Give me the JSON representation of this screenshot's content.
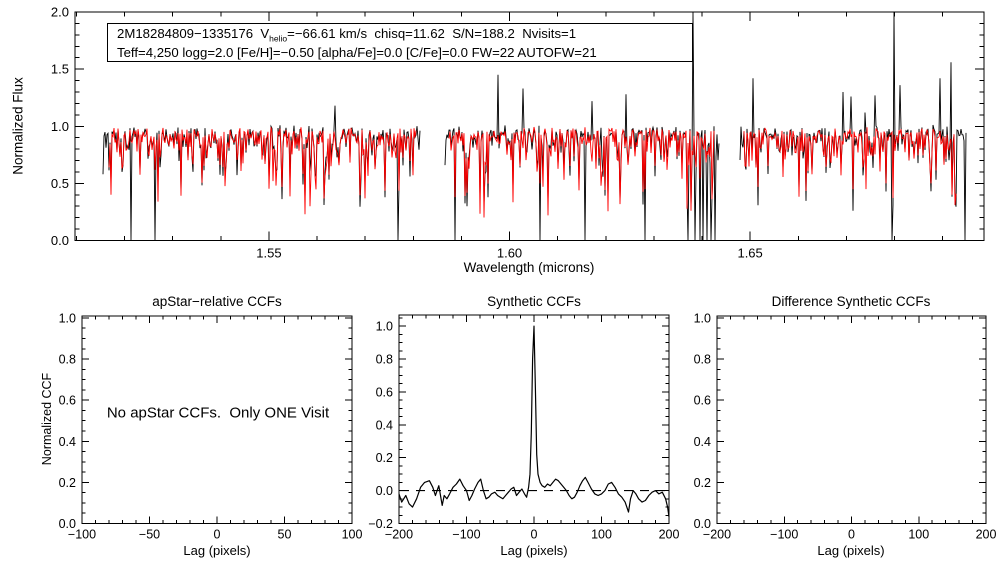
{
  "figure": {
    "background": "#ffffff",
    "frame_color": "#000000",
    "observed_color": "#000000",
    "model_color": "#ff0000"
  },
  "chart_data": [
    {
      "type": "line",
      "name": "combined-spectrum",
      "title": "",
      "xlabel": "Wavelength (microns)",
      "ylabel": "Normalized Flux",
      "xlim": [
        1.5097,
        1.6986
      ],
      "ylim": [
        0.0,
        2.0
      ],
      "grid": false,
      "xticks": {
        "values": [
          1.55,
          1.6,
          1.65
        ],
        "labels": [
          "1.55",
          "1.60",
          "1.65"
        ],
        "minor_step": 0.01
      },
      "yticks": {
        "values": [
          0.0,
          0.5,
          1.0,
          1.5,
          2.0
        ],
        "labels": [
          "0.0",
          "0.5",
          "1.0",
          "1.5",
          "2.0"
        ],
        "minor_step": 0.1
      },
      "annotation": {
        "line1_a": "2M18284809−1335176  V",
        "line1_sub": "helio",
        "line1_b": "=−66.61 km/s  chisq=11.62  S/N=188.2  Nvisits=1",
        "line2": "Teff=4,250 logg=2.0 [Fe/H]=−0.50 [alpha/Fe]=0.0 [C/Fe]=0.0 FW=22 AUTOFW=21"
      },
      "series": [
        {
          "name": "observed spectrum",
          "color": "#000000"
        },
        {
          "name": "synthetic model spectrum",
          "color": "#ff0000"
        }
      ],
      "spectrum": {
        "continuum": 0.96,
        "chunks": [
          {
            "black": [
              1.5155,
              1.5813
            ],
            "red": [
              1.5168,
              1.5805
            ]
          },
          {
            "black": [
              1.5865,
              1.6436
            ],
            "red": [
              1.5875,
              1.6425
            ]
          },
          {
            "black": [
              1.6478,
              1.6948
            ],
            "red": [
              1.6487,
              1.6928
            ]
          }
        ],
        "absorption_to_zero": [
          1.5213,
          1.5263,
          1.5769,
          1.5887,
          1.6063,
          1.6157,
          1.6282,
          1.637,
          1.6385,
          1.6395,
          1.6402,
          1.641,
          1.6418,
          1.6426,
          1.6795,
          1.6946
        ],
        "emission_spikes": [
          {
            "wavelength": 1.5637,
            "peak": 1.18
          },
          {
            "wavelength": 1.5976,
            "peak": 1.45
          },
          {
            "wavelength": 1.6027,
            "peak": 1.33
          },
          {
            "wavelength": 1.6172,
            "peak": 1.22
          },
          {
            "wavelength": 1.6241,
            "peak": 1.28
          },
          {
            "wavelength": 1.6382,
            "peak": 2.0
          },
          {
            "wavelength": 1.6505,
            "peak": 1.42
          },
          {
            "wavelength": 1.6693,
            "peak": 1.3
          },
          {
            "wavelength": 1.671,
            "peak": 1.26
          },
          {
            "wavelength": 1.6738,
            "peak": 1.12
          },
          {
            "wavelength": 1.676,
            "peak": 1.27
          },
          {
            "wavelength": 1.6799,
            "peak": 2.0
          },
          {
            "wavelength": 1.6812,
            "peak": 1.36
          },
          {
            "wavelength": 1.6895,
            "peak": 1.42
          },
          {
            "wavelength": 1.6918,
            "peak": 1.56
          }
        ],
        "model_deep_lines": [
          {
            "wavelength": 1.5509,
            "depth_to": 0.52
          },
          {
            "wavelength": 1.5586,
            "depth_to": 0.3
          },
          {
            "wavelength": 1.5887,
            "depth_to": 0.38
          },
          {
            "wavelength": 1.6063,
            "depth_to": 0.5
          },
          {
            "wavelength": 1.619,
            "depth_to": 0.48
          },
          {
            "wavelength": 1.6282,
            "depth_to": 0.45
          },
          {
            "wavelength": 1.674,
            "depth_to": 0.45
          },
          {
            "wavelength": 1.6782,
            "depth_to": 0.5
          }
        ]
      }
    },
    {
      "type": "line",
      "name": "apstar-relative-ccf",
      "title": "apStar−relative CCFs",
      "xlabel": "Lag (pixels)",
      "ylabel": "Normalized CCF",
      "xlim": [
        -100,
        100
      ],
      "ylim": [
        0.0,
        1.0
      ],
      "xticks": {
        "values": [
          -100,
          -50,
          0,
          50,
          100
        ],
        "labels": [
          "−100",
          "−50",
          "0",
          "50",
          "100"
        ],
        "minor_step": 10
      },
      "yticks": {
        "values": [
          0.0,
          0.2,
          0.4,
          0.6,
          0.8,
          1.0
        ],
        "labels": [
          "0.0",
          "0.2",
          "0.4",
          "0.6",
          "0.8",
          "1.0"
        ],
        "minor_step": 0.05
      },
      "message": "No apStar CCFs.  Only ONE Visit",
      "series": []
    },
    {
      "type": "line",
      "name": "synthetic-ccf",
      "title": "Synthetic CCFs",
      "xlabel": "Lag (pixels)",
      "ylabel": "",
      "xlim": [
        -200,
        200
      ],
      "ylim": [
        -0.2,
        1.0
      ],
      "xticks": {
        "values": [
          -200,
          -100,
          0,
          100,
          200
        ],
        "labels": [
          "−200",
          "−100",
          "0",
          "100",
          "200"
        ],
        "minor_step": 20
      },
      "yticks": {
        "values": [
          -0.2,
          0.0,
          0.2,
          0.4,
          0.6,
          0.8,
          1.0
        ],
        "labels": [
          "−0.2",
          "0.0",
          "0.2",
          "0.4",
          "0.6",
          "0.8",
          "1.0"
        ],
        "minor_step": 0.05
      },
      "zero_dash_line": 0.0,
      "series": [
        {
          "name": "synthetic CCF",
          "color": "#000000",
          "x": [
            -200,
            -196,
            -190,
            -185,
            -180,
            -174,
            -168,
            -162,
            -155,
            -150,
            -146,
            -141,
            -136,
            -133,
            -129,
            -125,
            -120,
            -115,
            -110,
            -105,
            -100,
            -96,
            -92,
            -88,
            -83,
            -79,
            -75,
            -71,
            -67,
            -63,
            -58,
            -54,
            -50,
            -46,
            -42,
            -38,
            -34,
            -30,
            -26,
            -22,
            -18,
            -14,
            -11,
            -8,
            -6,
            -4,
            -2,
            0,
            2,
            4,
            6,
            9,
            12,
            16,
            20,
            24,
            28,
            32,
            36,
            40,
            44,
            48,
            52,
            56,
            60,
            64,
            68,
            72,
            76,
            80,
            85,
            90,
            95,
            100,
            105,
            110,
            115,
            120,
            125,
            130,
            135,
            140,
            143,
            147,
            151,
            155,
            160,
            165,
            170,
            175,
            180,
            185,
            190,
            195,
            198,
            200
          ],
          "y": [
            -0.02,
            -0.07,
            -0.03,
            -0.08,
            -0.1,
            -0.05,
            0.02,
            0.05,
            0.06,
            0.02,
            -0.03,
            0.03,
            -0.09,
            -0.03,
            -0.05,
            -0.02,
            0.02,
            0.04,
            0.07,
            0.03,
            0.0,
            -0.06,
            -0.03,
            0.01,
            0.05,
            0.07,
            0.0,
            -0.05,
            -0.04,
            -0.02,
            -0.01,
            -0.03,
            -0.04,
            -0.05,
            -0.03,
            -0.01,
            0.01,
            0.02,
            -0.03,
            -0.01,
            0.01,
            -0.02,
            -0.04,
            0.02,
            0.1,
            0.35,
            0.8,
            1.0,
            0.62,
            0.22,
            0.1,
            0.05,
            0.03,
            0.02,
            0.04,
            0.03,
            0.05,
            0.07,
            0.06,
            0.04,
            0.02,
            0.0,
            -0.03,
            -0.05,
            -0.04,
            -0.01,
            0.03,
            0.06,
            0.08,
            0.05,
            0.01,
            -0.02,
            -0.03,
            -0.02,
            0.0,
            0.04,
            0.05,
            0.02,
            -0.02,
            -0.04,
            -0.07,
            -0.13,
            -0.05,
            0.0,
            -0.02,
            -0.05,
            -0.07,
            -0.06,
            -0.03,
            -0.01,
            0.0,
            -0.02,
            -0.01,
            -0.05,
            -0.1,
            -0.16
          ]
        }
      ]
    },
    {
      "type": "line",
      "name": "difference-synthetic-ccf",
      "title": "Difference Synthetic CCFs",
      "xlabel": "Lag (pixels)",
      "ylabel": "",
      "xlim": [
        -200,
        200
      ],
      "ylim": [
        0.0,
        1.0
      ],
      "xticks": {
        "values": [
          -200,
          -100,
          0,
          100,
          200
        ],
        "labels": [
          "−200",
          "−100",
          "0",
          "100",
          "200"
        ],
        "minor_step": 20
      },
      "yticks": {
        "values": [
          0.0,
          0.2,
          0.4,
          0.6,
          0.8,
          1.0
        ],
        "labels": [
          "0.0",
          "0.2",
          "0.4",
          "0.6",
          "0.8",
          "1.0"
        ],
        "minor_step": 0.05
      },
      "series": []
    }
  ]
}
